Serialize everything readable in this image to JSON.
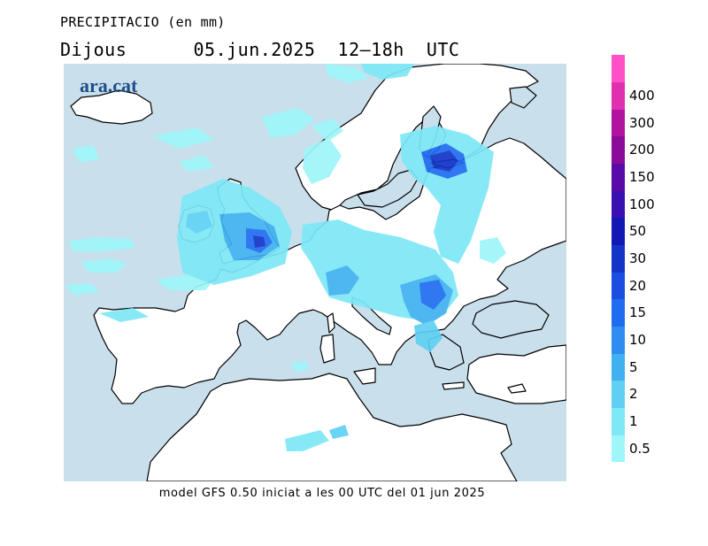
{
  "header": {
    "title": "PRECIPITACIO (en mm)",
    "subtitle": "Dijous      05.jun.2025  12–18h  UTC"
  },
  "map": {
    "logo": "ara.cat",
    "sea_color": "#c9dfec",
    "land_color": "#ffffff",
    "region": "Europe"
  },
  "footer": {
    "model_text": "model GFS 0.50 iniciat a les 00 UTC del 01 jun 2025"
  },
  "legend": {
    "unit": "mm",
    "levels": [
      {
        "label": "0.5",
        "color": "#9ef6f8"
      },
      {
        "label": "1",
        "color": "#7ee8f6"
      },
      {
        "label": "2",
        "color": "#5fd0f3"
      },
      {
        "label": "5",
        "color": "#3fb0f0"
      },
      {
        "label": "10",
        "color": "#2f8cf0"
      },
      {
        "label": "15",
        "color": "#1f6cf0"
      },
      {
        "label": "20",
        "color": "#1a4ee0"
      },
      {
        "label": "30",
        "color": "#1434c8"
      },
      {
        "label": "50",
        "color": "#1218b4"
      },
      {
        "label": "100",
        "color": "#3a10b0"
      },
      {
        "label": "150",
        "color": "#5a0aa8"
      },
      {
        "label": "200",
        "color": "#8a0a9a"
      },
      {
        "label": "300",
        "color": "#b0149e"
      },
      {
        "label": "400",
        "color": "#e030b0"
      },
      {
        "label": "",
        "color": "#ff50c8"
      }
    ]
  }
}
